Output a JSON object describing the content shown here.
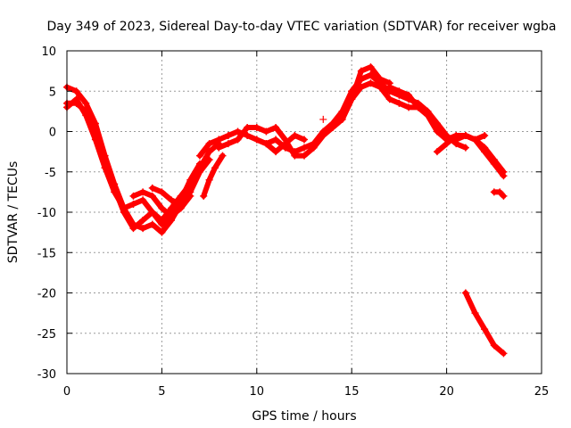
{
  "chart_data": {
    "type": "scatter",
    "title": "Day 349 of 2023, Sidereal Day-to-day VTEC variation (SDTVAR) for receiver wgba",
    "xlabel": "GPS time / hours",
    "ylabel": "SDTVAR / TECUs",
    "xlim": [
      0,
      25
    ],
    "ylim": [
      -30,
      10
    ],
    "xticks": [
      0,
      5,
      10,
      15,
      20,
      25
    ],
    "xtick_labels": [
      "0",
      "5",
      "10",
      "15",
      "20",
      "25"
    ],
    "yticks": [
      10,
      5,
      0,
      -5,
      -10,
      -15,
      -20,
      -25,
      -30
    ],
    "ytick_labels": [
      "10",
      "5",
      "0",
      "-5",
      "-10",
      "-15",
      "-20",
      "-25",
      "-30"
    ],
    "grid": true,
    "marker": "+",
    "color": "#ff0000",
    "series": [
      {
        "name": "track-1",
        "x": [
          0,
          0.5,
          1,
          1.5,
          2,
          2.5,
          3,
          3.5,
          4,
          4.5,
          5,
          5.5,
          6,
          6.5,
          7,
          7.5,
          8
        ],
        "y": [
          5.5,
          5,
          3.5,
          1,
          -3,
          -6.5,
          -9.5,
          -11.5,
          -12,
          -11.5,
          -12.5,
          -11,
          -9,
          -7,
          -4.5,
          -2.5,
          -1.5
        ]
      },
      {
        "name": "track-2",
        "x": [
          0,
          0.5,
          1,
          1.5,
          2,
          2.5,
          3,
          3.5,
          4,
          4.5,
          5,
          5.5,
          6,
          6.5,
          7
        ],
        "y": [
          3.5,
          3.5,
          2.5,
          0,
          -3.5,
          -7,
          -10,
          -12,
          -11,
          -10,
          -11.5,
          -10,
          -8.5,
          -6,
          -4
        ]
      },
      {
        "name": "track-3",
        "x": [
          0,
          0.5,
          1,
          1.5,
          2,
          2.5,
          3,
          3.5,
          4,
          4.5,
          5,
          5.5,
          6,
          6.5
        ],
        "y": [
          3,
          4,
          2,
          -1,
          -4.5,
          -7.5,
          -9.5,
          -9,
          -8.5,
          -10,
          -11,
          -9.5,
          -8,
          -6.5
        ]
      },
      {
        "name": "track-4",
        "x": [
          3.5,
          4,
          4.5,
          5,
          5.5,
          6,
          6.5
        ],
        "y": [
          -8,
          -7.5,
          -8,
          -9.5,
          -10.5,
          -9.5,
          -8
        ]
      },
      {
        "name": "track-5",
        "x": [
          4.5,
          5,
          5.5,
          6,
          6.5,
          7,
          7.5
        ],
        "y": [
          -7,
          -7.5,
          -8.5,
          -9,
          -7.5,
          -5,
          -3.5
        ]
      },
      {
        "name": "track-6",
        "x": [
          7,
          7.5,
          8,
          8.5,
          9,
          9.5,
          10,
          10.5,
          11,
          11.5,
          12,
          12.5,
          13,
          13.5,
          14,
          14.5,
          15,
          15.5,
          16,
          16.5
        ],
        "y": [
          -3,
          -1.5,
          -1,
          -0.5,
          0,
          -0.5,
          -1,
          -1.5,
          -1,
          -2,
          -2.5,
          -2,
          -1.5,
          0,
          1,
          2.5,
          5,
          6.5,
          7,
          6.5
        ]
      },
      {
        "name": "track-7",
        "x": [
          8,
          8.5,
          9,
          9.5,
          10,
          10.5,
          11,
          11.5,
          12,
          12.5,
          13,
          13.5,
          14,
          14.5,
          15,
          15.5,
          16,
          16.5,
          17
        ],
        "y": [
          -2,
          -1.5,
          -1,
          0.5,
          0.5,
          0,
          0.5,
          -1,
          -3,
          -3,
          -2,
          -0.5,
          0.5,
          1.5,
          4,
          7.5,
          8,
          6.5,
          6
        ]
      },
      {
        "name": "track-8",
        "x": [
          10,
          10.5,
          11,
          11.5,
          12,
          12.5
        ],
        "y": [
          -1,
          -1.5,
          -2.5,
          -1.5,
          -0.5,
          -1
        ]
      },
      {
        "name": "track-9",
        "x": [
          7.2,
          7.5,
          7.8,
          8.2
        ],
        "y": [
          -8,
          -6,
          -4.5,
          -3
        ]
      },
      {
        "name": "track-10",
        "x": [
          14.5,
          15,
          15.5,
          16,
          16.5,
          17,
          17.5,
          18,
          18.5,
          19,
          19.5,
          20,
          20.5,
          21,
          21.5,
          22,
          22.5,
          23
        ],
        "y": [
          1.5,
          4,
          5.5,
          6,
          5.5,
          4,
          3.5,
          3,
          3,
          2,
          0,
          -1,
          -0.5,
          -0.5,
          -1,
          -2,
          -3.5,
          -5
        ]
      },
      {
        "name": "track-11",
        "x": [
          15,
          15.5,
          16,
          16.5,
          17,
          17.5,
          18,
          18.5,
          19,
          19.5,
          20,
          20.5,
          21,
          21.5,
          22,
          22.5,
          23
        ],
        "y": [
          5,
          6.5,
          7,
          6,
          5,
          4.5,
          4,
          3.5,
          2.5,
          0.5,
          -1,
          -1,
          -0.5,
          -1,
          -2.5,
          -4,
          -5.5
        ]
      },
      {
        "name": "track-12",
        "x": [
          17,
          17.5,
          18,
          18.5,
          19,
          19.5,
          20,
          20.5,
          21
        ],
        "y": [
          5.5,
          5,
          4.5,
          3,
          2.5,
          1,
          -0.5,
          -1.5,
          -2
        ]
      },
      {
        "name": "track-13",
        "x": [
          19.5,
          20,
          20.5,
          21,
          21.5,
          22
        ],
        "y": [
          -2.5,
          -1.5,
          -0.5,
          -0.5,
          -1,
          -0.5
        ]
      },
      {
        "name": "track-14",
        "x": [
          22.5,
          22.8,
          23
        ],
        "y": [
          -7.5,
          -7.5,
          -8
        ]
      },
      {
        "name": "track-15",
        "x": [
          21,
          21.5,
          22,
          22.5,
          23
        ],
        "y": [
          -20,
          -22.5,
          -24.5,
          -26.5,
          -27.5
        ]
      }
    ],
    "isolated_points": [
      {
        "x": 13.5,
        "y": 1.5
      }
    ]
  }
}
